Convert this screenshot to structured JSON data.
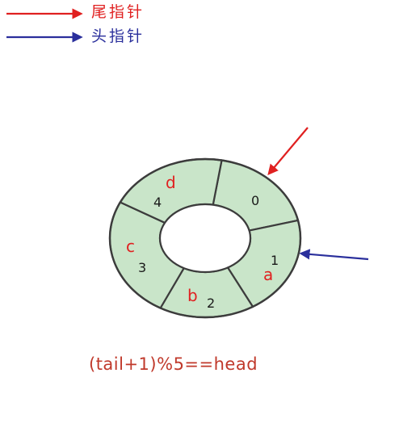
{
  "colors": {
    "tail": "#e02020",
    "head": "#2a2f9c",
    "ring_fill": "#c9e5c9",
    "outline": "#3c3c3c",
    "index_text": "#1a1a1a",
    "element_text": "#e02020",
    "formula_text": "#c0392b"
  },
  "legend": {
    "tail_label": "尾指针",
    "head_label": "头指针"
  },
  "queue": {
    "slots": [
      {
        "index": "0",
        "element": ""
      },
      {
        "index": "1",
        "element": "a"
      },
      {
        "index": "2",
        "element": "b"
      },
      {
        "index": "3",
        "element": "c"
      },
      {
        "index": "4",
        "element": "d"
      }
    ]
  },
  "formula": "(tail+1)%5==head"
}
